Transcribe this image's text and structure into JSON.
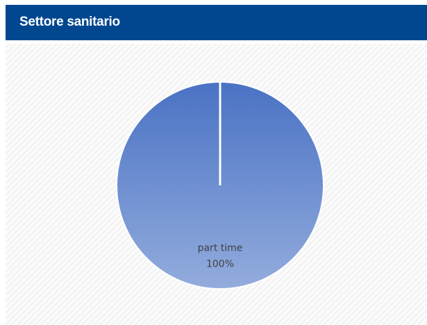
{
  "chart_data": {
    "type": "pie",
    "title": "Settore sanitario",
    "categories": [
      "part time"
    ],
    "values": [
      100
    ],
    "value_labels": [
      "100%"
    ],
    "colors": [
      "#4a72c4"
    ]
  }
}
